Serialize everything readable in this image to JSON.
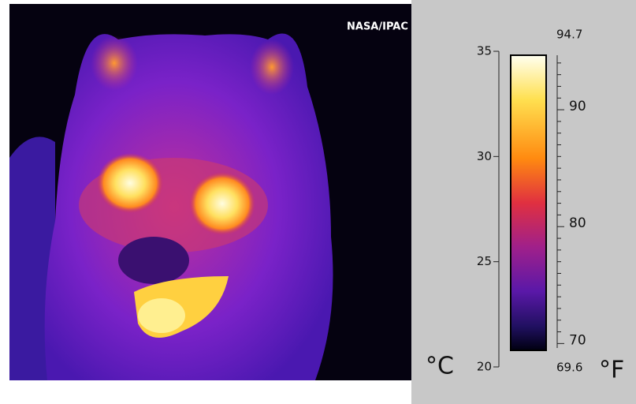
{
  "credit": "NASA/IPAC",
  "celsius": {
    "unit": "°C",
    "ticks": [
      35,
      30,
      25,
      20
    ]
  },
  "fahrenheit": {
    "unit": "°F",
    "ticks": [
      90,
      80,
      70
    ],
    "range_labels": [
      94.7,
      69.6
    ]
  }
}
